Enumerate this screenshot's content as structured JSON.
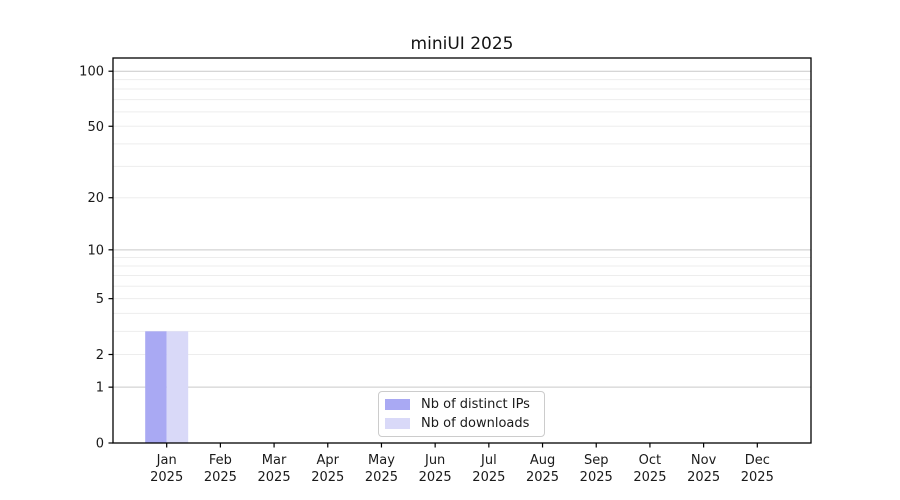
{
  "chart_data": {
    "type": "bar",
    "title": "miniUI 2025",
    "categories": [
      "Jan",
      "Feb",
      "Mar",
      "Apr",
      "May",
      "Jun",
      "Jul",
      "Aug",
      "Sep",
      "Oct",
      "Nov",
      "Dec"
    ],
    "year_label": "2025",
    "series": [
      {
        "name": "Nb of distinct IPs",
        "color": "#a9a9f3",
        "values": [
          3,
          0,
          0,
          0,
          0,
          0,
          0,
          0,
          0,
          0,
          0,
          0
        ]
      },
      {
        "name": "Nb of downloads",
        "color": "#d9d9f8",
        "values": [
          3,
          0,
          0,
          0,
          0,
          0,
          0,
          0,
          0,
          0,
          0,
          0
        ]
      }
    ],
    "yscale": "log1p",
    "ylim": [
      0,
      118
    ],
    "ytick_labels": [
      0,
      1,
      2,
      5,
      10,
      20,
      50,
      100
    ],
    "ymajor_gridlines": [
      1,
      10,
      100
    ],
    "yminor_gridlines": [
      2,
      3,
      4,
      5,
      6,
      7,
      8,
      9,
      20,
      30,
      40,
      50,
      60,
      70,
      80,
      90
    ],
    "grid": "horizontal",
    "legend_position": "lower center",
    "colors": {
      "spine": "#000000",
      "tick_label": "#1a1a1a",
      "major_grid": "#c9c9c9",
      "minor_grid": "#ededed",
      "legend_border": "#cccccc",
      "background": "#ffffff"
    }
  }
}
